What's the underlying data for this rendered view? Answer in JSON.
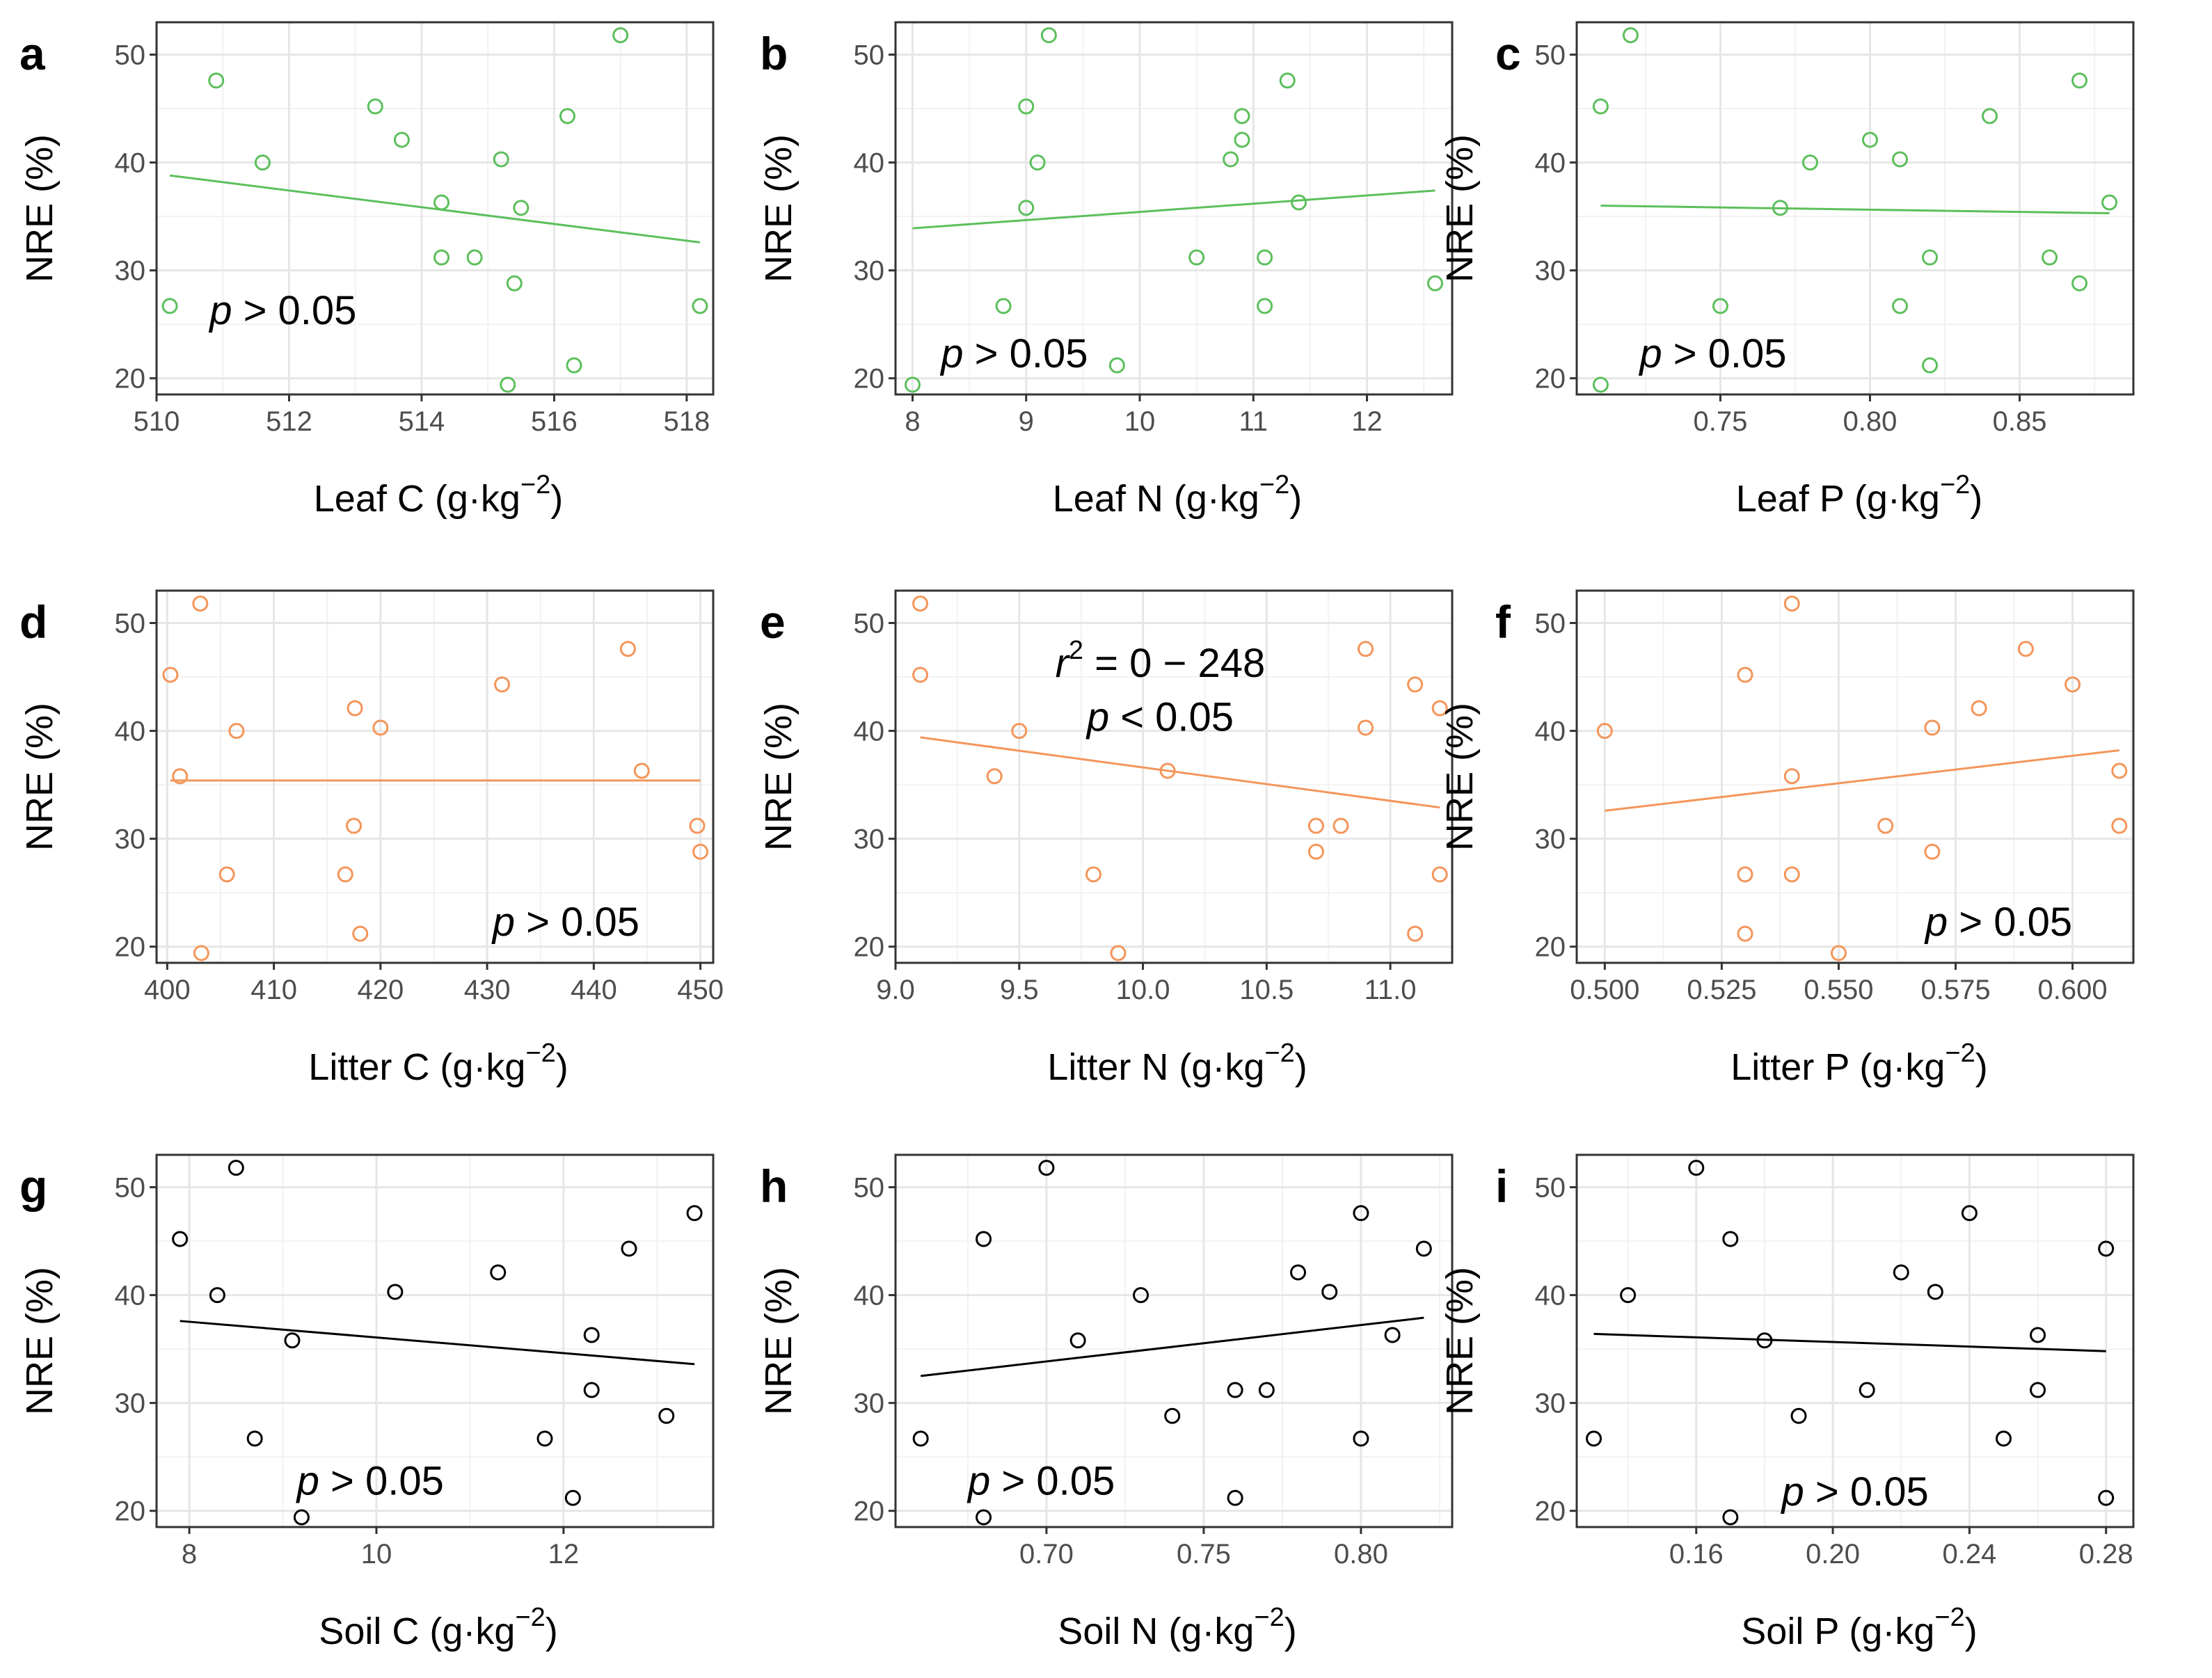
{
  "chart_data": [
    {
      "type": "scatter",
      "panel": "a",
      "xlabel": "Leaf C",
      "xunit": "(g·kg",
      "xunit_exp": "−2",
      "ylabel": "NRE (%)",
      "xlim": [
        510.0,
        518.4
      ],
      "ylim": [
        18.5,
        53.0
      ],
      "xticks": [
        510,
        512,
        514,
        516,
        518
      ],
      "yticks": [
        20,
        30,
        40,
        50
      ],
      "color": "#5cbf5c",
      "points": [
        [
          510.2,
          26.7
        ],
        [
          510.9,
          47.6
        ],
        [
          511.6,
          40.0
        ],
        [
          513.3,
          45.2
        ],
        [
          513.7,
          42.1
        ],
        [
          514.3,
          36.3
        ],
        [
          514.3,
          31.2
        ],
        [
          514.8,
          31.2
        ],
        [
          515.2,
          40.3
        ],
        [
          515.4,
          28.8
        ],
        [
          515.5,
          35.8
        ],
        [
          515.3,
          19.4
        ],
        [
          516.2,
          44.3
        ],
        [
          516.3,
          21.2
        ],
        [
          517.0,
          51.8
        ],
        [
          518.2,
          26.7
        ]
      ],
      "trend": [
        [
          510.2,
          38.8
        ],
        [
          518.2,
          32.6
        ]
      ],
      "annotation": {
        "p_var": "p",
        "p_text": " > 0.05",
        "x": 510.8,
        "y": 25.0
      }
    },
    {
      "type": "scatter",
      "panel": "b",
      "xlabel": "Leaf N",
      "xunit": "(g·kg",
      "xunit_exp": "−2",
      "ylabel": "NRE (%)",
      "xlim": [
        7.85,
        12.75
      ],
      "ylim": [
        18.5,
        53.0
      ],
      "xticks": [
        8,
        9,
        10,
        11,
        12
      ],
      "yticks": [
        20,
        30,
        40,
        50
      ],
      "color": "#5cbf5c",
      "points": [
        [
          8.0,
          19.4
        ],
        [
          8.8,
          26.7
        ],
        [
          9.0,
          45.2
        ],
        [
          9.0,
          35.8
        ],
        [
          9.1,
          40.0
        ],
        [
          9.2,
          51.8
        ],
        [
          9.8,
          21.2
        ],
        [
          10.5,
          31.2
        ],
        [
          10.8,
          40.3
        ],
        [
          10.9,
          42.1
        ],
        [
          10.9,
          44.3
        ],
        [
          11.1,
          31.2
        ],
        [
          11.1,
          26.7
        ],
        [
          11.3,
          47.6
        ],
        [
          11.4,
          36.3
        ],
        [
          12.6,
          28.8
        ]
      ],
      "trend": [
        [
          8.0,
          33.9
        ],
        [
          12.6,
          37.4
        ]
      ],
      "annotation": {
        "p_var": "p",
        "p_text": " > 0.05",
        "x": 8.25,
        "y": 21.0
      }
    },
    {
      "type": "scatter",
      "panel": "c",
      "xlabel": "Leaf P",
      "xunit": "(g·kg",
      "xunit_exp": "−2",
      "ylabel": "NRE (%)",
      "xlim": [
        0.702,
        0.888
      ],
      "ylim": [
        18.5,
        53.0
      ],
      "xticks": [
        0.75,
        0.8,
        0.85
      ],
      "xtick_labels": [
        "0.75",
        "0.80",
        "0.85"
      ],
      "yticks": [
        20,
        30,
        40,
        50
      ],
      "color": "#5cbf5c",
      "points": [
        [
          0.71,
          19.4
        ],
        [
          0.71,
          45.2
        ],
        [
          0.72,
          51.8
        ],
        [
          0.75,
          26.7
        ],
        [
          0.77,
          35.8
        ],
        [
          0.78,
          40.0
        ],
        [
          0.8,
          42.1
        ],
        [
          0.81,
          40.3
        ],
        [
          0.81,
          26.7
        ],
        [
          0.82,
          31.2
        ],
        [
          0.82,
          21.2
        ],
        [
          0.84,
          44.3
        ],
        [
          0.86,
          31.2
        ],
        [
          0.87,
          28.8
        ],
        [
          0.87,
          47.6
        ],
        [
          0.88,
          36.3
        ]
      ],
      "trend": [
        [
          0.71,
          36.0
        ],
        [
          0.88,
          35.3
        ]
      ],
      "annotation": {
        "p_var": "p",
        "p_text": " > 0.05",
        "x": 0.723,
        "y": 21.0
      }
    },
    {
      "type": "scatter",
      "panel": "d",
      "xlabel": "Litter C",
      "xunit": "(g·kg",
      "xunit_exp": "−2",
      "ylabel": "NRE (%)",
      "xlim": [
        399.0,
        451.2
      ],
      "ylim": [
        18.5,
        53.0
      ],
      "xticks": [
        400,
        410,
        420,
        430,
        440,
        450
      ],
      "yticks": [
        20,
        30,
        40,
        50
      ],
      "color": "#f4955a",
      "points": [
        [
          400.3,
          45.2
        ],
        [
          401.2,
          35.8
        ],
        [
          403.1,
          51.8
        ],
        [
          403.2,
          19.4
        ],
        [
          405.6,
          26.7
        ],
        [
          406.5,
          40.0
        ],
        [
          416.7,
          26.7
        ],
        [
          417.5,
          31.2
        ],
        [
          417.6,
          42.1
        ],
        [
          418.1,
          21.2
        ],
        [
          420.0,
          40.3
        ],
        [
          431.4,
          44.3
        ],
        [
          443.2,
          47.6
        ],
        [
          444.5,
          36.3
        ],
        [
          449.7,
          31.2
        ],
        [
          450.0,
          28.8
        ]
      ],
      "trend": [
        [
          400.3,
          35.4
        ],
        [
          450.0,
          35.4
        ]
      ],
      "annotation": {
        "p_var": "p",
        "p_text": " > 0.05",
        "x": 430.5,
        "y": 21.0
      }
    },
    {
      "type": "scatter",
      "panel": "e",
      "xlabel": "Litter N",
      "xunit": "(g·kg",
      "xunit_exp": "−2",
      "ylabel": "NRE (%)",
      "xlim": [
        9.0,
        11.25
      ],
      "ylim": [
        18.5,
        53.0
      ],
      "xticks": [
        9.0,
        9.5,
        10.0,
        10.5,
        11.0
      ],
      "xtick_labels": [
        "9.0",
        "9.5",
        "10.0",
        "10.5",
        "11.0"
      ],
      "yticks": [
        20,
        30,
        40,
        50
      ],
      "color": "#f4955a",
      "points": [
        [
          9.1,
          51.8
        ],
        [
          9.1,
          45.2
        ],
        [
          9.4,
          35.8
        ],
        [
          9.5,
          40.0
        ],
        [
          9.8,
          26.7
        ],
        [
          9.9,
          19.4
        ],
        [
          10.1,
          36.3
        ],
        [
          10.7,
          31.2
        ],
        [
          10.7,
          28.8
        ],
        [
          10.8,
          31.2
        ],
        [
          10.9,
          47.6
        ],
        [
          10.9,
          40.3
        ],
        [
          11.1,
          44.3
        ],
        [
          11.1,
          21.2
        ],
        [
          11.2,
          42.1
        ],
        [
          11.2,
          26.7
        ]
      ],
      "trend": [
        [
          9.1,
          39.4
        ],
        [
          11.2,
          32.9
        ]
      ],
      "annotation": {
        "r_var": "r",
        "r_exp": "2",
        "r_text": " = 0 − 248",
        "p_var": "p",
        "p_text": " < 0.05",
        "x": 10.07,
        "y": 45.0,
        "y2": 40.0
      }
    },
    {
      "type": "scatter",
      "panel": "f",
      "xlabel": "Litter P",
      "xunit": "(g·kg",
      "xunit_exp": "−2",
      "ylabel": "NRE (%)",
      "xlim": [
        0.494,
        0.613
      ],
      "ylim": [
        18.5,
        53.0
      ],
      "xticks": [
        0.5,
        0.525,
        0.55,
        0.575,
        0.6
      ],
      "xtick_labels": [
        "0.500",
        "0.525",
        "0.550",
        "0.575",
        "0.600"
      ],
      "yticks": [
        20,
        30,
        40,
        50
      ],
      "color": "#f4955a",
      "points": [
        [
          0.5,
          40.0
        ],
        [
          0.53,
          45.2
        ],
        [
          0.53,
          26.7
        ],
        [
          0.53,
          21.2
        ],
        [
          0.54,
          51.8
        ],
        [
          0.54,
          35.8
        ],
        [
          0.54,
          26.7
        ],
        [
          0.55,
          19.4
        ],
        [
          0.56,
          31.2
        ],
        [
          0.57,
          40.3
        ],
        [
          0.57,
          28.8
        ],
        [
          0.58,
          42.1
        ],
        [
          0.59,
          47.6
        ],
        [
          0.6,
          44.3
        ],
        [
          0.61,
          36.3
        ],
        [
          0.61,
          31.2
        ]
      ],
      "trend": [
        [
          0.5,
          32.6
        ],
        [
          0.61,
          38.2
        ]
      ],
      "annotation": {
        "p_var": "p",
        "p_text": " > 0.05",
        "x": 0.5685,
        "y": 21.0
      }
    },
    {
      "type": "scatter",
      "panel": "g",
      "xlabel": "Soil C",
      "xunit": "(g·kg",
      "xunit_exp": "−2",
      "ylabel": "NRE (%)",
      "xlim": [
        7.65,
        13.6
      ],
      "ylim": [
        18.5,
        53.0
      ],
      "xticks": [
        8,
        10,
        12
      ],
      "yticks": [
        20,
        30,
        40,
        50
      ],
      "color": "#000000",
      "points": [
        [
          7.9,
          45.2
        ],
        [
          8.3,
          40.0
        ],
        [
          8.5,
          51.8
        ],
        [
          8.7,
          26.7
        ],
        [
          9.1,
          35.8
        ],
        [
          9.2,
          19.4
        ],
        [
          10.2,
          40.3
        ],
        [
          11.3,
          42.1
        ],
        [
          11.8,
          26.7
        ],
        [
          12.1,
          21.2
        ],
        [
          12.3,
          36.3
        ],
        [
          12.3,
          31.2
        ],
        [
          12.7,
          44.3
        ],
        [
          13.1,
          28.8
        ],
        [
          13.4,
          47.6
        ]
      ],
      "trend": [
        [
          7.9,
          37.6
        ],
        [
          13.4,
          33.6
        ]
      ],
      "annotation": {
        "p_var": "p",
        "p_text": " > 0.05",
        "x": 9.15,
        "y": 21.5
      }
    },
    {
      "type": "scatter",
      "panel": "h",
      "xlabel": "Soil N",
      "xunit": "(g·kg",
      "xunit_exp": "−2",
      "ylabel": "NRE (%)",
      "xlim": [
        0.652,
        0.829
      ],
      "ylim": [
        18.5,
        53.0
      ],
      "xticks": [
        0.7,
        0.75,
        0.8
      ],
      "xtick_labels": [
        "0.70",
        "0.75",
        "0.80"
      ],
      "yticks": [
        20,
        30,
        40,
        50
      ],
      "color": "#000000",
      "points": [
        [
          0.66,
          26.7
        ],
        [
          0.68,
          45.2
        ],
        [
          0.68,
          19.4
        ],
        [
          0.7,
          51.8
        ],
        [
          0.71,
          35.8
        ],
        [
          0.73,
          40.0
        ],
        [
          0.74,
          28.8
        ],
        [
          0.76,
          31.2
        ],
        [
          0.76,
          21.2
        ],
        [
          0.77,
          31.2
        ],
        [
          0.78,
          42.1
        ],
        [
          0.79,
          40.3
        ],
        [
          0.8,
          47.6
        ],
        [
          0.8,
          26.7
        ],
        [
          0.81,
          36.3
        ],
        [
          0.82,
          44.3
        ]
      ],
      "trend": [
        [
          0.66,
          32.5
        ],
        [
          0.82,
          37.9
        ]
      ],
      "annotation": {
        "p_var": "p",
        "p_text": " > 0.05",
        "x": 0.675,
        "y": 21.5
      }
    },
    {
      "type": "scatter",
      "panel": "i",
      "xlabel": "Soil P",
      "xunit": "(g·kg",
      "xunit_exp": "−2",
      "ylabel": "NRE (%)",
      "xlim": [
        0.125,
        0.288
      ],
      "ylim": [
        18.5,
        53.0
      ],
      "xticks": [
        0.16,
        0.2,
        0.24,
        0.28
      ],
      "xtick_labels": [
        "0.16",
        "0.20",
        "0.24",
        "0.28"
      ],
      "yticks": [
        20,
        30,
        40,
        50
      ],
      "color": "#000000",
      "points": [
        [
          0.13,
          26.7
        ],
        [
          0.14,
          40.0
        ],
        [
          0.16,
          51.8
        ],
        [
          0.17,
          45.2
        ],
        [
          0.17,
          19.4
        ],
        [
          0.18,
          35.8
        ],
        [
          0.19,
          28.8
        ],
        [
          0.21,
          31.2
        ],
        [
          0.22,
          42.1
        ],
        [
          0.23,
          40.3
        ],
        [
          0.24,
          47.6
        ],
        [
          0.25,
          26.7
        ],
        [
          0.26,
          36.3
        ],
        [
          0.26,
          31.2
        ],
        [
          0.28,
          44.3
        ],
        [
          0.28,
          21.2
        ]
      ],
      "trend": [
        [
          0.13,
          36.4
        ],
        [
          0.28,
          34.8
        ]
      ],
      "annotation": {
        "p_var": "p",
        "p_text": " > 0.05",
        "x": 0.185,
        "y": 20.5
      }
    }
  ]
}
